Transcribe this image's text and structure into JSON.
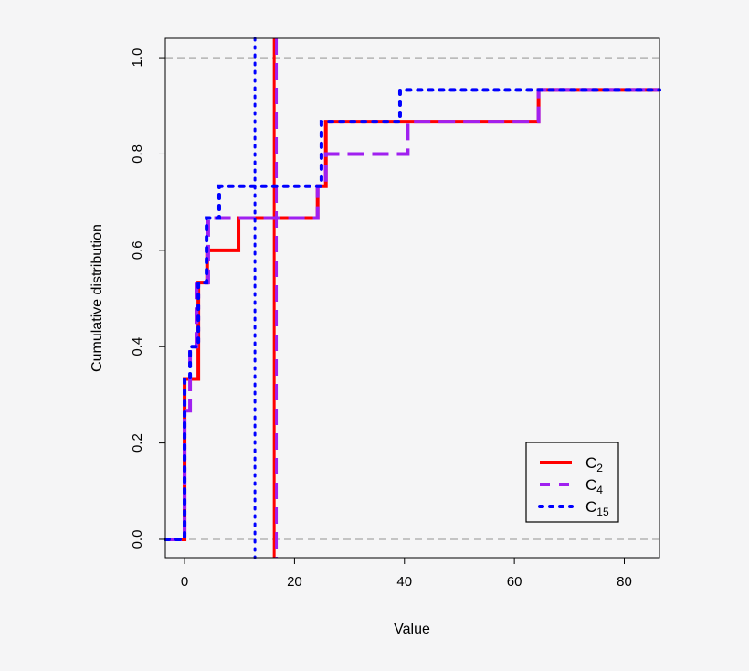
{
  "chart_data": {
    "type": "line",
    "step": true,
    "xlabel": "Value",
    "ylabel": "Cumulative distribution",
    "xlim": [
      -3.5,
      86.4
    ],
    "ylim": [
      -0.038,
      1.04
    ],
    "xticks": [
      0,
      20,
      40,
      60,
      80
    ],
    "xtick_labels": [
      "0",
      "20",
      "40",
      "60",
      "80"
    ],
    "yticks": [
      0,
      0.2,
      0.4,
      0.6,
      0.8,
      1.0
    ],
    "ytick_labels": [
      "0.0",
      "0.2",
      "0.4",
      "0.6",
      "0.8",
      "1.0"
    ],
    "reference_lines_y": [
      0,
      1
    ],
    "reference_line_color": "#b3b3b3",
    "legend_position": "bottom-right",
    "series": [
      {
        "name": "C2",
        "label_base": "C",
        "label_sub": "2",
        "color": "#ff0000",
        "dash": "solid",
        "steps": [
          [
            0,
            0.333
          ],
          [
            2.5,
            0.533
          ],
          [
            4.1,
            0.6
          ],
          [
            9.8,
            0.667
          ],
          [
            24.2,
            0.733
          ],
          [
            25.7,
            0.867
          ],
          [
            64.4,
            0.933
          ]
        ],
        "vline": 16.3
      },
      {
        "name": "C4",
        "label_base": "C",
        "label_sub": "4",
        "color": "#a020f0",
        "dash": "dashed",
        "steps": [
          [
            0,
            0.267
          ],
          [
            1,
            0.4
          ],
          [
            2.2,
            0.533
          ],
          [
            4.3,
            0.667
          ],
          [
            24.2,
            0.733
          ],
          [
            25.7,
            0.8
          ],
          [
            40.6,
            0.867
          ],
          [
            64.4,
            0.933
          ]
        ],
        "vline": 16.7
      },
      {
        "name": "C15",
        "label_base": "C",
        "label_sub": "15",
        "color": "#0000ff",
        "dash": "dotted",
        "steps": [
          [
            0,
            0.333
          ],
          [
            1,
            0.4
          ],
          [
            2.5,
            0.533
          ],
          [
            4,
            0.667
          ],
          [
            6.3,
            0.733
          ],
          [
            24.9,
            0.867
          ],
          [
            39.2,
            0.933
          ]
        ],
        "vline": 12.8
      }
    ]
  }
}
